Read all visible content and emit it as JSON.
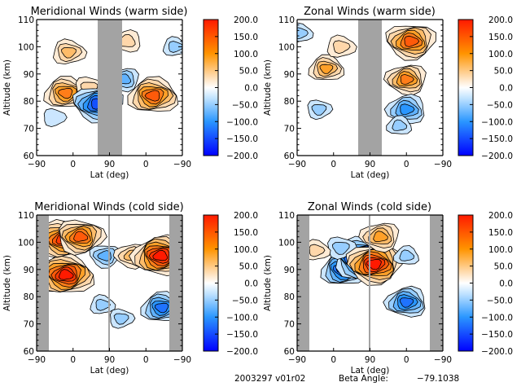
{
  "footer": {
    "date_version": "2003297 v01r02",
    "beta_label": "Beta Angle:",
    "beta_value": "-79.1038"
  },
  "chart_data": [
    {
      "type": "heatmap",
      "id": "meridional-warm",
      "title": "Meridional Winds (warm side)",
      "xlabel": "Lat (deg)",
      "ylabel": "Altitude (km)",
      "xticks": [
        "-90",
        "0",
        "90",
        "0",
        "-90"
      ],
      "yticks": [
        "60",
        "70",
        "80",
        "90",
        "100",
        "110"
      ],
      "ylim": [
        60,
        110
      ],
      "colorbar": {
        "ticks": [
          "200.0",
          "150.0",
          "100.0",
          "50.0",
          "0.0",
          "-50.0",
          "-100.0",
          "-150.0",
          "-200.0"
        ],
        "range": [
          -200,
          200
        ]
      },
      "gaps": [
        [
          62,
          118
        ]
      ],
      "features": [
        {
          "lat_pos": 0.2,
          "alt": 83,
          "value": 130
        },
        {
          "lat_pos": 0.22,
          "alt": 98,
          "value": 80
        },
        {
          "lat_pos": 0.36,
          "alt": 85,
          "value": 60
        },
        {
          "lat_pos": 0.42,
          "alt": 79,
          "value": -160
        },
        {
          "lat_pos": 0.6,
          "alt": 88,
          "value": -70
        },
        {
          "lat_pos": 0.62,
          "alt": 102,
          "value": 60
        },
        {
          "lat_pos": 0.8,
          "alt": 82,
          "value": 160
        },
        {
          "lat_pos": 0.95,
          "alt": 100,
          "value": -40
        },
        {
          "lat_pos": 0.12,
          "alt": 74,
          "value": -30
        }
      ]
    },
    {
      "type": "heatmap",
      "id": "zonal-warm",
      "title": "Zonal Winds (warm side)",
      "xlabel": "Lat (deg)",
      "ylabel": "Altitude (km)",
      "xticks": [
        "-90",
        "0",
        "90",
        "0",
        "-90"
      ],
      "yticks": [
        "60",
        "70",
        "80",
        "90",
        "100",
        "110"
      ],
      "ylim": [
        60,
        110
      ],
      "colorbar": {
        "ticks": [
          "200.0",
          "150.0",
          "100.0",
          "50.0",
          "0.0",
          "-50.0",
          "-100.0",
          "-150.0",
          "-200.0"
        ],
        "range": [
          -200,
          200
        ]
      },
      "gaps": [
        [
          62,
          118
        ]
      ],
      "features": [
        {
          "lat_pos": 0.2,
          "alt": 92,
          "value": 90
        },
        {
          "lat_pos": 0.3,
          "alt": 100,
          "value": 60
        },
        {
          "lat_pos": 0.15,
          "alt": 77,
          "value": -40
        },
        {
          "lat_pos": 0.78,
          "alt": 102,
          "value": 160
        },
        {
          "lat_pos": 0.75,
          "alt": 88,
          "value": 120
        },
        {
          "lat_pos": 0.75,
          "alt": 77,
          "value": -110
        },
        {
          "lat_pos": 0.7,
          "alt": 71,
          "value": -40
        },
        {
          "lat_pos": 0.02,
          "alt": 105,
          "value": -40
        }
      ]
    },
    {
      "type": "heatmap",
      "id": "meridional-cold",
      "title": "Meridional Winds (cold side)",
      "xlabel": "Lat (deg)",
      "ylabel": "Altitude (km)",
      "xticks": [
        "-90",
        "0",
        "90",
        "0",
        "-90"
      ],
      "yticks": [
        "60",
        "70",
        "80",
        "90",
        "100",
        "110"
      ],
      "ylim": [
        60,
        110
      ],
      "colorbar": {
        "ticks": [
          "200.0",
          "150.0",
          "100.0",
          "50.0",
          "0.0",
          "-50.0",
          "-100.0",
          "-150.0",
          "-200.0"
        ],
        "range": [
          -200,
          200
        ]
      },
      "gaps": [
        [
          -90,
          -75
        ],
        [
          87,
          90
        ],
        [
          -75,
          -90
        ]
      ],
      "features": [
        {
          "lat_pos": 0.2,
          "alt": 88,
          "value": 190
        },
        {
          "lat_pos": 0.18,
          "alt": 101,
          "value": 170
        },
        {
          "lat_pos": 0.3,
          "alt": 102,
          "value": 150
        },
        {
          "lat_pos": 0.47,
          "alt": 95,
          "value": -70
        },
        {
          "lat_pos": 0.65,
          "alt": 95,
          "value": 80
        },
        {
          "lat_pos": 0.85,
          "alt": 95,
          "value": 190
        },
        {
          "lat_pos": 0.86,
          "alt": 76,
          "value": -120
        },
        {
          "lat_pos": 0.45,
          "alt": 77,
          "value": -40
        },
        {
          "lat_pos": 0.58,
          "alt": 72,
          "value": -40
        }
      ]
    },
    {
      "type": "heatmap",
      "id": "zonal-cold",
      "title": "Zonal Winds (cold side)",
      "xlabel": "Lat (deg)",
      "ylabel": "Altitude (km)",
      "xticks": [
        "-90",
        "0",
        "90",
        "0",
        "-90"
      ],
      "yticks": [
        "60",
        "70",
        "80",
        "90",
        "100",
        "110"
      ],
      "ylim": [
        60,
        110
      ],
      "colorbar": {
        "ticks": [
          "200.0",
          "150.0",
          "100.0",
          "50.0",
          "0.0",
          "-50.0",
          "-100.0",
          "-150.0",
          "-200.0"
        ],
        "range": [
          -200,
          200
        ]
      },
      "gaps": [
        [
          -90,
          -75
        ],
        [
          87,
          90
        ],
        [
          -75,
          -90
        ]
      ],
      "features": [
        {
          "lat_pos": 0.32,
          "alt": 90,
          "value": -140
        },
        {
          "lat_pos": 0.45,
          "alt": 94,
          "value": -200
        },
        {
          "lat_pos": 0.3,
          "alt": 98,
          "value": -60
        },
        {
          "lat_pos": 0.53,
          "alt": 92,
          "value": 190
        },
        {
          "lat_pos": 0.57,
          "alt": 102,
          "value": 110
        },
        {
          "lat_pos": 0.75,
          "alt": 78,
          "value": -120
        },
        {
          "lat_pos": 0.75,
          "alt": 95,
          "value": -40
        },
        {
          "lat_pos": 0.13,
          "alt": 97,
          "value": 50
        }
      ]
    }
  ]
}
